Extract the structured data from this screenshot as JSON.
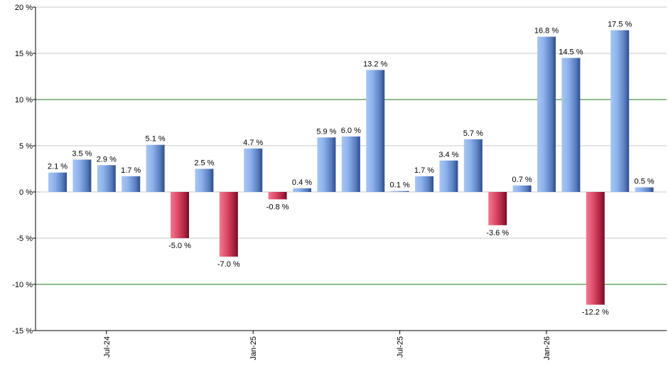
{
  "chart_data": {
    "type": "bar",
    "ylim": [
      -15,
      20
    ],
    "yticks": [
      -15,
      -10,
      -5,
      0,
      5,
      10,
      15,
      20
    ],
    "ytick_labels": [
      "-15 %",
      "-10 %",
      "-5 %",
      "0 %",
      "5 %",
      "10 %",
      "15 %",
      "20 %"
    ],
    "highlight_lines": [
      10,
      -10
    ],
    "values": [
      2.1,
      3.5,
      2.9,
      1.7,
      5.1,
      -5.0,
      2.5,
      -7.0,
      4.7,
      -0.8,
      0.4,
      5.9,
      6.0,
      13.2,
      0.1,
      1.7,
      3.4,
      5.7,
      -3.6,
      0.7,
      16.8,
      14.5,
      -12.2,
      17.5,
      0.5
    ],
    "value_labels": [
      "2.1 %",
      "3.5 %",
      "2.9 %",
      "1.7 %",
      "5.1 %",
      "-5.0 %",
      "2.5 %",
      "-7.0 %",
      "4.7 %",
      "-0.8 %",
      "0.4 %",
      "5.9 %",
      "6.0 %",
      "13.2 %",
      "0.1 %",
      "1.7 %",
      "3.4 %",
      "5.7 %",
      "-3.6 %",
      "0.7 %",
      "16.8 %",
      "14.5 %",
      "-12.2 %",
      "17.5 %",
      "0.5 %"
    ],
    "x_labels": [
      {
        "index": 2,
        "text": "Jul-24"
      },
      {
        "index": 8,
        "text": "Jan-25"
      },
      {
        "index": 14,
        "text": "Jul-25"
      },
      {
        "index": 20,
        "text": "Jan-26"
      }
    ],
    "grid": true,
    "colors": {
      "positive": "#7ea6e0",
      "negative": "#c8344f",
      "grid": "#c8c8c8",
      "highlight": "#1a7a1a"
    }
  }
}
